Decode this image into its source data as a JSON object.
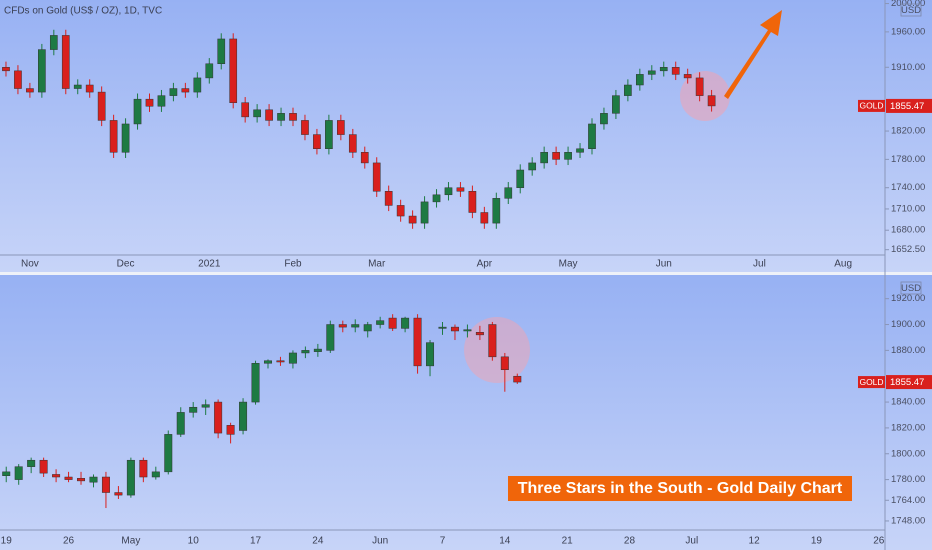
{
  "chart_data": [
    {
      "type": "candlestick",
      "title": "CFDs on Gold (US$ / OZ), 1D, TVC",
      "currency": "USD",
      "symbol": "GOLD",
      "last_price": 1855.47,
      "up_color": "#1e7a43",
      "down_color": "#d9201d",
      "ylim": [
        1645,
        2005
      ],
      "yticks": [
        {
          "value": 2000,
          "label": "2000.00"
        },
        {
          "value": 1960,
          "label": "1960.00"
        },
        {
          "value": 1910,
          "label": "1910.00"
        },
        {
          "value": 1820,
          "label": "1820.00"
        },
        {
          "value": 1780,
          "label": "1780.00"
        },
        {
          "value": 1740,
          "label": "1740.00"
        },
        {
          "value": 1710,
          "label": "1710.00"
        },
        {
          "value": 1680,
          "label": "1680.00"
        },
        {
          "value": 1652.5,
          "label": "1652.50"
        }
      ],
      "categories": [
        null,
        null,
        "Nov",
        null,
        null,
        null,
        null,
        null,
        null,
        null,
        "Dec",
        null,
        null,
        null,
        null,
        null,
        null,
        "2021",
        null,
        null,
        null,
        null,
        null,
        null,
        "Feb",
        null,
        null,
        null,
        null,
        null,
        null,
        "Mar",
        null,
        null,
        null,
        null,
        null,
        null,
        null,
        null,
        "Apr",
        null,
        null,
        null,
        null,
        null,
        null,
        "May",
        null,
        null,
        null,
        null,
        null,
        null,
        null,
        "Jun",
        null,
        null,
        null,
        null,
        null,
        null,
        null,
        "Jul",
        null,
        null,
        null,
        null,
        null,
        null,
        "Aug",
        null,
        null,
        null
      ],
      "open": [
        1910,
        1905,
        1880,
        1875,
        1935,
        1955,
        1880,
        1885,
        1875,
        1835,
        1790,
        1830,
        1865,
        1855,
        1870,
        1880,
        1875,
        1895,
        1915,
        1950,
        1860,
        1840,
        1850,
        1835,
        1845,
        1835,
        1815,
        1795,
        1835,
        1815,
        1790,
        1775,
        1735,
        1715,
        1700,
        1690,
        1720,
        1730,
        1740,
        1735,
        1705,
        1690,
        1725,
        1740,
        1765,
        1775,
        1790,
        1780,
        1790,
        1795,
        1830,
        1845,
        1870,
        1885,
        1900,
        1905,
        1910,
        1900,
        1895,
        1870,
        null,
        null,
        null,
        null,
        null,
        null,
        null,
        null,
        null,
        null,
        null,
        null,
        null,
        null
      ],
      "high": [
        1918,
        1913,
        1888,
        1943,
        1963,
        1963,
        1893,
        1893,
        1883,
        1843,
        1838,
        1873,
        1873,
        1878,
        1888,
        1888,
        1903,
        1923,
        1958,
        1958,
        1868,
        1858,
        1858,
        1853,
        1853,
        1843,
        1823,
        1843,
        1843,
        1823,
        1798,
        1783,
        1743,
        1723,
        1708,
        1728,
        1738,
        1748,
        1748,
        1743,
        1713,
        1733,
        1748,
        1773,
        1783,
        1798,
        1798,
        1798,
        1803,
        1838,
        1853,
        1878,
        1893,
        1908,
        1913,
        1918,
        1918,
        1908,
        1903,
        1878,
        null,
        null,
        null,
        null,
        null,
        null,
        null,
        null,
        null,
        null,
        null,
        null,
        null,
        null
      ],
      "low": [
        1897,
        1872,
        1867,
        1867,
        1927,
        1872,
        1872,
        1867,
        1827,
        1782,
        1782,
        1822,
        1847,
        1847,
        1862,
        1867,
        1867,
        1887,
        1907,
        1852,
        1832,
        1832,
        1827,
        1827,
        1827,
        1807,
        1787,
        1787,
        1807,
        1782,
        1767,
        1727,
        1707,
        1692,
        1682,
        1682,
        1712,
        1722,
        1727,
        1697,
        1682,
        1682,
        1717,
        1732,
        1757,
        1767,
        1772,
        1772,
        1782,
        1787,
        1822,
        1837,
        1862,
        1877,
        1892,
        1897,
        1892,
        1887,
        1862,
        1847.47,
        null,
        null,
        null,
        null,
        null,
        null,
        null,
        null,
        null,
        null,
        null,
        null,
        null,
        null
      ],
      "close": [
        1905,
        1880,
        1875,
        1935,
        1955,
        1880,
        1885,
        1875,
        1835,
        1790,
        1830,
        1865,
        1855,
        1870,
        1880,
        1875,
        1895,
        1915,
        1950,
        1860,
        1840,
        1850,
        1835,
        1845,
        1835,
        1815,
        1795,
        1835,
        1815,
        1790,
        1775,
        1735,
        1715,
        1700,
        1690,
        1720,
        1730,
        1740,
        1735,
        1705,
        1690,
        1725,
        1740,
        1765,
        1775,
        1790,
        1780,
        1790,
        1795,
        1830,
        1845,
        1870,
        1885,
        1900,
        1905,
        1910,
        1900,
        1895,
        1870,
        1855.47,
        null,
        null,
        null,
        null,
        null,
        null,
        null,
        null,
        null,
        null,
        null,
        null,
        null,
        null
      ]
    },
    {
      "type": "candlestick",
      "currency": "USD",
      "symbol": "GOLD",
      "last_price": 1855.47,
      "annotation": "Three Stars in the South - Gold Daily Chart",
      "up_color": "#1e7a43",
      "down_color": "#d9201d",
      "ylim": [
        1741,
        1936
      ],
      "yticks": [
        {
          "value": 1920,
          "label": "1920.00"
        },
        {
          "value": 1900,
          "label": "1900.00"
        },
        {
          "value": 1880,
          "label": "1880.00"
        },
        {
          "value": 1840,
          "label": "1840.00"
        },
        {
          "value": 1820,
          "label": "1820.00"
        },
        {
          "value": 1800,
          "label": "1800.00"
        },
        {
          "value": 1780,
          "label": "1780.00"
        },
        {
          "value": 1764,
          "label": "1764.00"
        },
        {
          "value": 1748,
          "label": "1748.00"
        }
      ],
      "categories": [
        "19",
        null,
        null,
        null,
        null,
        "26",
        null,
        null,
        null,
        null,
        "May",
        null,
        null,
        null,
        null,
        "10",
        null,
        null,
        null,
        null,
        "17",
        null,
        null,
        null,
        null,
        "24",
        null,
        null,
        null,
        null,
        "Jun",
        null,
        null,
        null,
        null,
        "7",
        null,
        null,
        null,
        null,
        "14",
        null,
        null,
        null,
        null,
        "21",
        null,
        null,
        null,
        null,
        "28",
        null,
        null,
        null,
        null,
        "Jul",
        null,
        null,
        null,
        null,
        "12",
        null,
        null,
        null,
        null,
        "19",
        null,
        null,
        null,
        null,
        "26"
      ],
      "open": [
        1783,
        1780,
        1790,
        1795,
        1784,
        1782,
        1781,
        1778,
        1782,
        1770,
        1768,
        1795,
        1782,
        1786,
        1815,
        1832,
        1836,
        1840,
        1822,
        1818,
        1840,
        1870,
        1872,
        1870,
        1878,
        1879,
        1880,
        1900,
        1898,
        1895,
        1900,
        1905,
        1897,
        1905,
        1868,
        1897,
        1898,
        1895,
        1894,
        1900,
        1875,
        1860,
        null,
        null,
        null,
        null,
        null,
        null,
        null,
        null,
        null,
        null,
        null,
        null,
        null,
        null,
        null,
        null,
        null,
        null,
        null,
        null,
        null,
        null,
        null,
        null,
        null,
        null,
        null,
        null,
        null
      ],
      "high": [
        1790,
        1792,
        1797,
        1797,
        1788,
        1786,
        1786,
        1784,
        1786,
        1775,
        1797,
        1797,
        1790,
        1818,
        1836,
        1840,
        1842,
        1842,
        1824,
        1843,
        1872,
        1873,
        1875,
        1880,
        1883,
        1885,
        1903,
        1903,
        1904,
        1902,
        1906,
        1908,
        1906,
        1908,
        1888,
        1902,
        1900,
        1900,
        1899,
        1902,
        1878,
        1862,
        null,
        null,
        null,
        null,
        null,
        null,
        null,
        null,
        null,
        null,
        null,
        null,
        null,
        null,
        null,
        null,
        null,
        null,
        null,
        null,
        null,
        null,
        null,
        null,
        null,
        null,
        null,
        null,
        null
      ],
      "low": [
        1778,
        1776,
        1785,
        1782,
        1778,
        1778,
        1776,
        1774,
        1758,
        1765,
        1766,
        1778,
        1780,
        1784,
        1813,
        1828,
        1830,
        1812,
        1808,
        1815,
        1838,
        1866,
        1868,
        1866,
        1874,
        1875,
        1878,
        1894,
        1894,
        1890,
        1897,
        1895,
        1894,
        1862,
        1860,
        1892,
        1888,
        1890,
        1888,
        1872,
        1848,
        1854,
        null,
        null,
        null,
        null,
        null,
        null,
        null,
        null,
        null,
        null,
        null,
        null,
        null,
        null,
        null,
        null,
        null,
        null,
        null,
        null,
        null,
        null,
        null,
        null,
        null,
        null,
        null,
        null,
        null
      ],
      "close": [
        1786,
        1790,
        1795,
        1785,
        1782,
        1780,
        1779,
        1782,
        1770,
        1768,
        1795,
        1782,
        1786,
        1815,
        1832,
        1836,
        1838,
        1816,
        1815,
        1840,
        1870,
        1872,
        1871,
        1878,
        1880,
        1881,
        1900,
        1898,
        1900,
        1900,
        1903,
        1897,
        1905,
        1868,
        1886,
        1898,
        1895,
        1896,
        1892,
        1875,
        1865,
        1855.47,
        null,
        null,
        null,
        null,
        null,
        null,
        null,
        null,
        null,
        null,
        null,
        null,
        null,
        null,
        null,
        null,
        null,
        null,
        null,
        null,
        null,
        null,
        null,
        null,
        null,
        null,
        null,
        null,
        null
      ]
    }
  ]
}
